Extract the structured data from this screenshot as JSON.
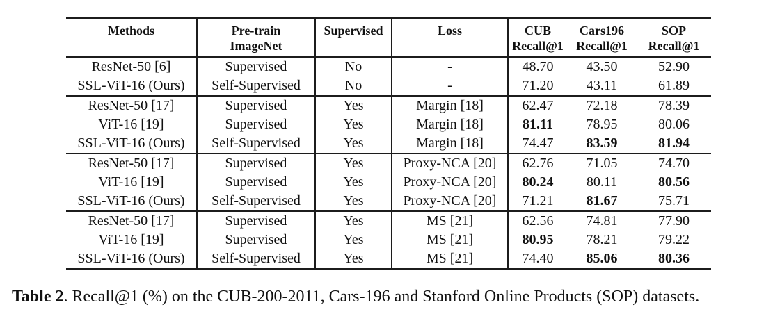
{
  "colors": {
    "background": "#ffffff",
    "text": "#111111",
    "rule": "#1c1c1c"
  },
  "caption": {
    "label": "Table 2",
    "text": ". Recall@1 (%) on the CUB-200-2011, Cars-196 and Stanford Online Products (SOP) datasets."
  },
  "table": {
    "headers": [
      {
        "line1": "Methods",
        "line2": ""
      },
      {
        "line1": "Pre-train",
        "line2": "ImageNet"
      },
      {
        "line1": "Supervised",
        "line2": ""
      },
      {
        "line1": "Loss",
        "line2": ""
      },
      {
        "line1": "CUB",
        "line2": "Recall@1"
      },
      {
        "line1": "Cars196",
        "line2": "Recall@1"
      },
      {
        "line1": "SOP",
        "line2": "Recall@1"
      }
    ],
    "groups": [
      {
        "rows": [
          {
            "cells": [
              "ResNet-50 [6]",
              "Supervised",
              "No",
              "-",
              "48.70",
              "43.50",
              "52.90"
            ],
            "bold_cols": []
          },
          {
            "cells": [
              "SSL-ViT-16 (Ours)",
              "Self-Supervised",
              "No",
              "-",
              "71.20",
              "43.11",
              "61.89"
            ],
            "bold_cols": []
          }
        ]
      },
      {
        "rows": [
          {
            "cells": [
              "ResNet-50 [17]",
              "Supervised",
              "Yes",
              "Margin [18]",
              "62.47",
              "72.18",
              "78.39"
            ],
            "bold_cols": []
          },
          {
            "cells": [
              "ViT-16 [19]",
              "Supervised",
              "Yes",
              "Margin [18]",
              "81.11",
              "78.95",
              "80.06"
            ],
            "bold_cols": [
              4
            ]
          },
          {
            "cells": [
              "SSL-ViT-16 (Ours)",
              "Self-Supervised",
              "Yes",
              "Margin [18]",
              "74.47",
              "83.59",
              "81.94"
            ],
            "bold_cols": [
              5,
              6
            ]
          }
        ]
      },
      {
        "rows": [
          {
            "cells": [
              "ResNet-50 [17]",
              "Supervised",
              "Yes",
              "Proxy-NCA [20]",
              "62.76",
              "71.05",
              "74.70"
            ],
            "bold_cols": []
          },
          {
            "cells": [
              "ViT-16 [19]",
              "Supervised",
              "Yes",
              "Proxy-NCA [20]",
              "80.24",
              "80.11",
              "80.56"
            ],
            "bold_cols": [
              4,
              6
            ]
          },
          {
            "cells": [
              "SSL-ViT-16 (Ours)",
              "Self-Supervised",
              "Yes",
              "Proxy-NCA [20]",
              "71.21",
              "81.67",
              "75.71"
            ],
            "bold_cols": [
              5
            ]
          }
        ]
      },
      {
        "rows": [
          {
            "cells": [
              "ResNet-50 [17]",
              "Supervised",
              "Yes",
              "MS [21]",
              "62.56",
              "74.81",
              "77.90"
            ],
            "bold_cols": []
          },
          {
            "cells": [
              "ViT-16 [19]",
              "Supervised",
              "Yes",
              "MS [21]",
              "80.95",
              "78.21",
              "79.22"
            ],
            "bold_cols": [
              4
            ]
          },
          {
            "cells": [
              "SSL-ViT-16 (Ours)",
              "Self-Supervised",
              "Yes",
              "MS [21]",
              "74.40",
              "85.06",
              "80.36"
            ],
            "bold_cols": [
              5,
              6
            ]
          }
        ]
      }
    ]
  }
}
